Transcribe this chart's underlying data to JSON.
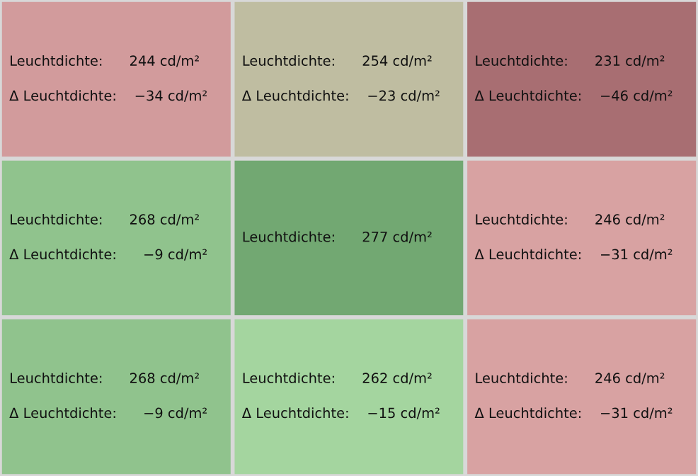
{
  "chart_data": {
    "type": "heatmap",
    "categories": [
      null,
      null,
      null
    ],
    "y_categories": [
      null,
      null,
      null
    ],
    "cells": [
      [
        244,
        254,
        231
      ],
      [
        268,
        277,
        246
      ],
      [
        268,
        262,
        246
      ]
    ],
    "cell_labels": [
      [
        "Leuchtdichte:      244 cd/m²",
        "Leuchtdichte:      254 cd/m²",
        "Leuchtdichte:      231 cd/m²"
      ],
      [
        "Leuchtdichte:      268 cd/m²",
        "Leuchtdichte:      277 cd/m²",
        "Leuchtdichte:      246 cd/m²"
      ],
      [
        "Leuchtdichte:      268 cd/m²",
        "Leuchtdichte:      262 cd/m²",
        "Leuchtdichte:      246 cd/m²"
      ]
    ],
    "annotations": [
      "Δ Leuchtdichte:    −34 cd/m²",
      "Δ Leuchtdichte:    −23 cd/m²",
      "Δ Leuchtdichte:    −46 cd/m²",
      "Δ Leuchtdichte:      −9 cd/m²",
      "Δ Leuchtdichte:    −31 cd/m²",
      "Δ Leuchtdichte:      −9 cd/m²",
      "Δ Leuchtdichte:    −15 cd/m²",
      "Δ Leuchtdichte:    −31 cd/m²"
    ],
    "grid": false
  }
}
